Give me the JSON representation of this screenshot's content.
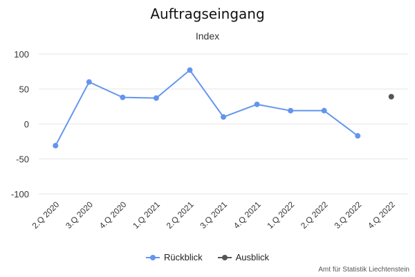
{
  "chart_data": {
    "type": "line",
    "title": "Auftragseingang",
    "subtitle": "Index",
    "categories": [
      "2.Q 2020",
      "3.Q 2020",
      "4.Q 2020",
      "1.Q 2021",
      "2.Q 2021",
      "3.Q 2021",
      "4.Q 2021",
      "1.Q 2022",
      "2.Q 2022",
      "3.Q 2022",
      "4.Q 2022"
    ],
    "ylim": [
      -100,
      100
    ],
    "yticks": [
      100,
      50,
      0,
      -50,
      -100
    ],
    "grid": true,
    "legend_position": "bottom-center",
    "series": [
      {
        "name": "Rückblick",
        "color": "#6495ed",
        "values": [
          -31,
          60,
          38,
          37,
          77,
          10,
          28,
          19,
          19,
          -17,
          null
        ]
      },
      {
        "name": "Ausblick",
        "color": "#555555",
        "values": [
          null,
          null,
          null,
          null,
          null,
          null,
          null,
          null,
          null,
          null,
          39
        ]
      }
    ]
  },
  "credits": "Amt für Statistik Liechtenstein"
}
